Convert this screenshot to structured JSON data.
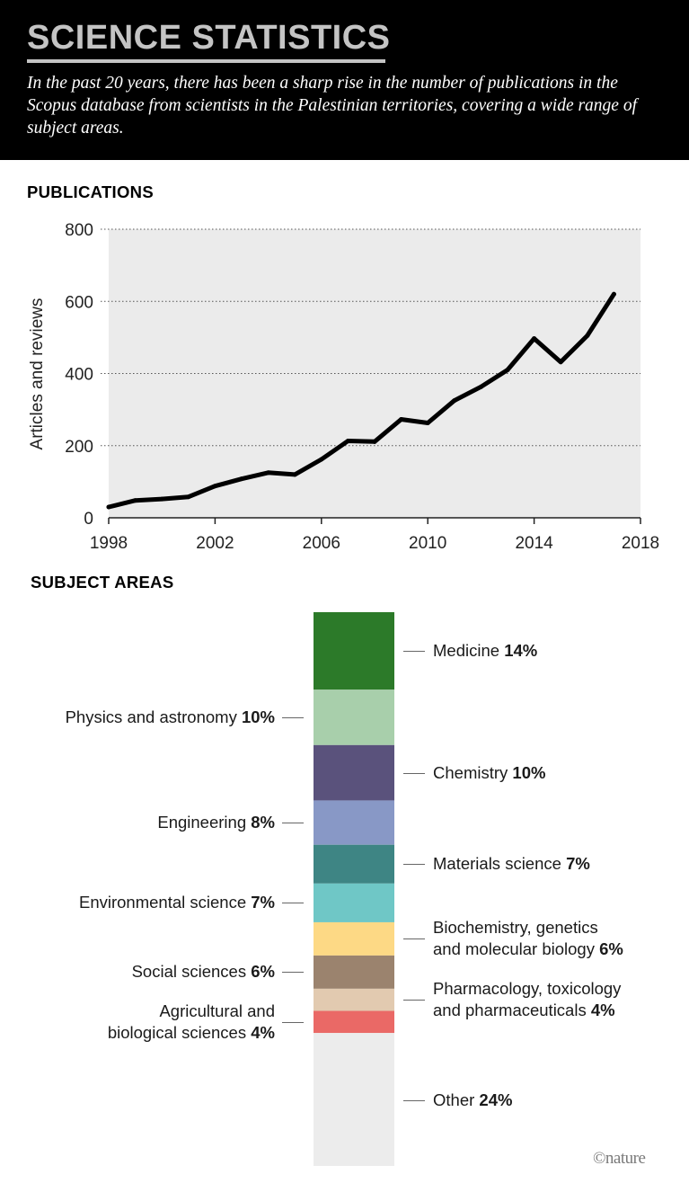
{
  "header": {
    "title": "SCIENCE STATISTICS",
    "subtitle": "In the past 20 years, there has been a sharp rise in the number of publications in the Scopus database from scientists in the Palestinian territories, covering a wide range of subject areas."
  },
  "publications": {
    "section_title": "PUBLICATIONS"
  },
  "subject_areas": {
    "section_title": "SUBJECT AREAS"
  },
  "credit": "©nature",
  "colors": {
    "header_bg": "#000000",
    "plot_bg": "#ebebeb",
    "line": "#000000"
  },
  "chart_data": [
    {
      "type": "line",
      "title": "PUBLICATIONS",
      "xlabel": "",
      "ylabel": "Articles and reviews",
      "x": [
        1998,
        1999,
        2000,
        2001,
        2002,
        2003,
        2004,
        2005,
        2006,
        2007,
        2008,
        2009,
        2010,
        2011,
        2012,
        2013,
        2014,
        2015,
        2016,
        2017
      ],
      "values": [
        30,
        48,
        52,
        58,
        88,
        108,
        125,
        120,
        162,
        213,
        211,
        273,
        263,
        325,
        363,
        410,
        497,
        432,
        505,
        620
      ],
      "xlim": [
        1998,
        2018
      ],
      "ylim": [
        0,
        800
      ],
      "xticks": [
        1998,
        2002,
        2006,
        2010,
        2014,
        2018
      ],
      "yticks": [
        0,
        200,
        400,
        600,
        800
      ],
      "grid": true
    },
    {
      "type": "bar",
      "stacked": true,
      "title": "SUBJECT AREAS",
      "categories": [
        "Medicine",
        "Physics and astronomy",
        "Chemistry",
        "Engineering",
        "Materials science",
        "Environmental science",
        "Biochemistry, genetics and molecular biology",
        "Social sciences",
        "Pharmacology, toxicology and pharmaceuticals",
        "Agricultural and biological sciences",
        "Other"
      ],
      "values": [
        14,
        10,
        10,
        8,
        7,
        7,
        6,
        6,
        4,
        4,
        24
      ],
      "unit": "%",
      "segments": [
        {
          "name": "Medicine",
          "value": 14,
          "color": "#2c7a29",
          "side": "right",
          "lines": [
            "Medicine"
          ]
        },
        {
          "name": "Physics and astronomy",
          "value": 10,
          "color": "#a8cfab",
          "side": "left",
          "lines": [
            "Physics and astronomy"
          ]
        },
        {
          "name": "Chemistry",
          "value": 10,
          "color": "#5a527c",
          "side": "right",
          "lines": [
            "Chemistry"
          ]
        },
        {
          "name": "Engineering",
          "value": 8,
          "color": "#8898c6",
          "side": "left",
          "lines": [
            "Engineering"
          ]
        },
        {
          "name": "Materials science",
          "value": 7,
          "color": "#3e8584",
          "side": "right",
          "lines": [
            "Materials science"
          ]
        },
        {
          "name": "Environmental science",
          "value": 7,
          "color": "#6fc7c6",
          "side": "left",
          "lines": [
            "Environmental science"
          ]
        },
        {
          "name": "Biochemistry, genetics and molecular biology",
          "value": 6,
          "color": "#fdd985",
          "side": "right",
          "lines": [
            "Biochemistry, genetics",
            "and molecular biology"
          ]
        },
        {
          "name": "Social sciences",
          "value": 6,
          "color": "#9b836e",
          "side": "left",
          "lines": [
            "Social sciences"
          ]
        },
        {
          "name": "Pharmacology, toxicology and pharmaceuticals",
          "value": 4,
          "color": "#e2cab0",
          "side": "right",
          "lines": [
            "Pharmacology, toxicology",
            "and pharmaceuticals"
          ]
        },
        {
          "name": "Agricultural and biological sciences",
          "value": 4,
          "color": "#ea6966",
          "side": "left",
          "lines": [
            "Agricultural and",
            "biological sciences"
          ]
        },
        {
          "name": "Other",
          "value": 24,
          "color": "#ececec",
          "side": "right",
          "lines": [
            "Other"
          ]
        }
      ]
    }
  ]
}
